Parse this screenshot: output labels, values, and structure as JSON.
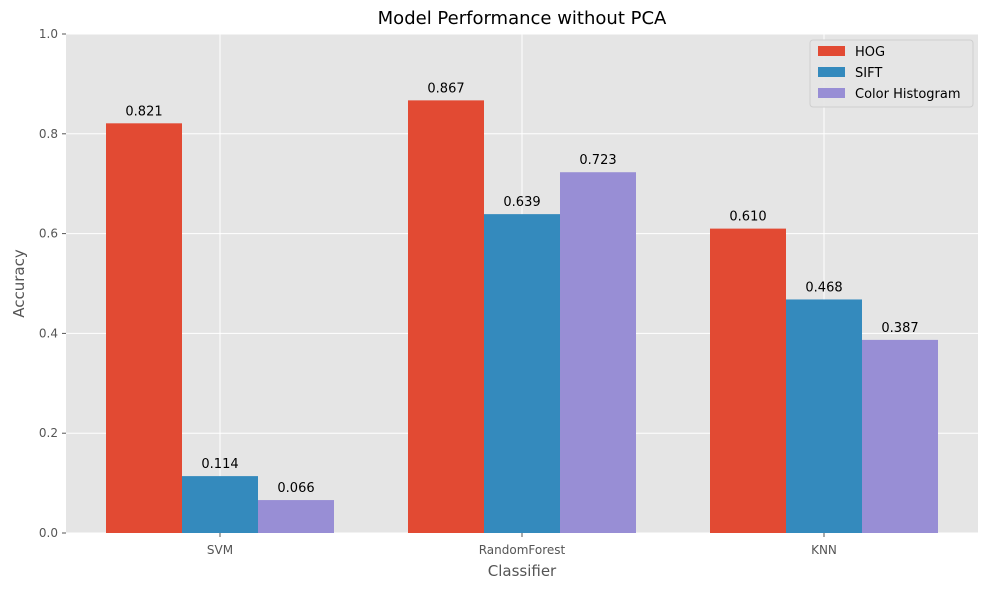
{
  "chart_data": {
    "type": "bar",
    "title": "Model Performance without PCA",
    "xlabel": "Classifier",
    "ylabel": "Accuracy",
    "ylim": [
      0,
      1.0
    ],
    "yticks": [
      "0.0",
      "0.2",
      "0.4",
      "0.6",
      "0.8",
      "1.0"
    ],
    "ytick_values": [
      0,
      0.2,
      0.4,
      0.6,
      0.8,
      1.0
    ],
    "categories": [
      "SVM",
      "RandomForest",
      "KNN"
    ],
    "series": [
      {
        "name": "HOG",
        "color": "#e24a33",
        "values": [
          0.821,
          0.867,
          0.61
        ],
        "labels": [
          "0.821",
          "0.867",
          "0.610"
        ]
      },
      {
        "name": "SIFT",
        "color": "#348abd",
        "values": [
          0.114,
          0.639,
          0.468
        ],
        "labels": [
          "0.114",
          "0.639",
          "0.468"
        ]
      },
      {
        "name": "Color Histogram",
        "color": "#988ed5",
        "values": [
          0.066,
          0.723,
          0.387
        ],
        "labels": [
          "0.066",
          "0.723",
          "0.387"
        ]
      }
    ],
    "grid": true,
    "legend_position": "top-right",
    "plot_background": "#e5e5e5",
    "grid_color": "#ffffff"
  }
}
